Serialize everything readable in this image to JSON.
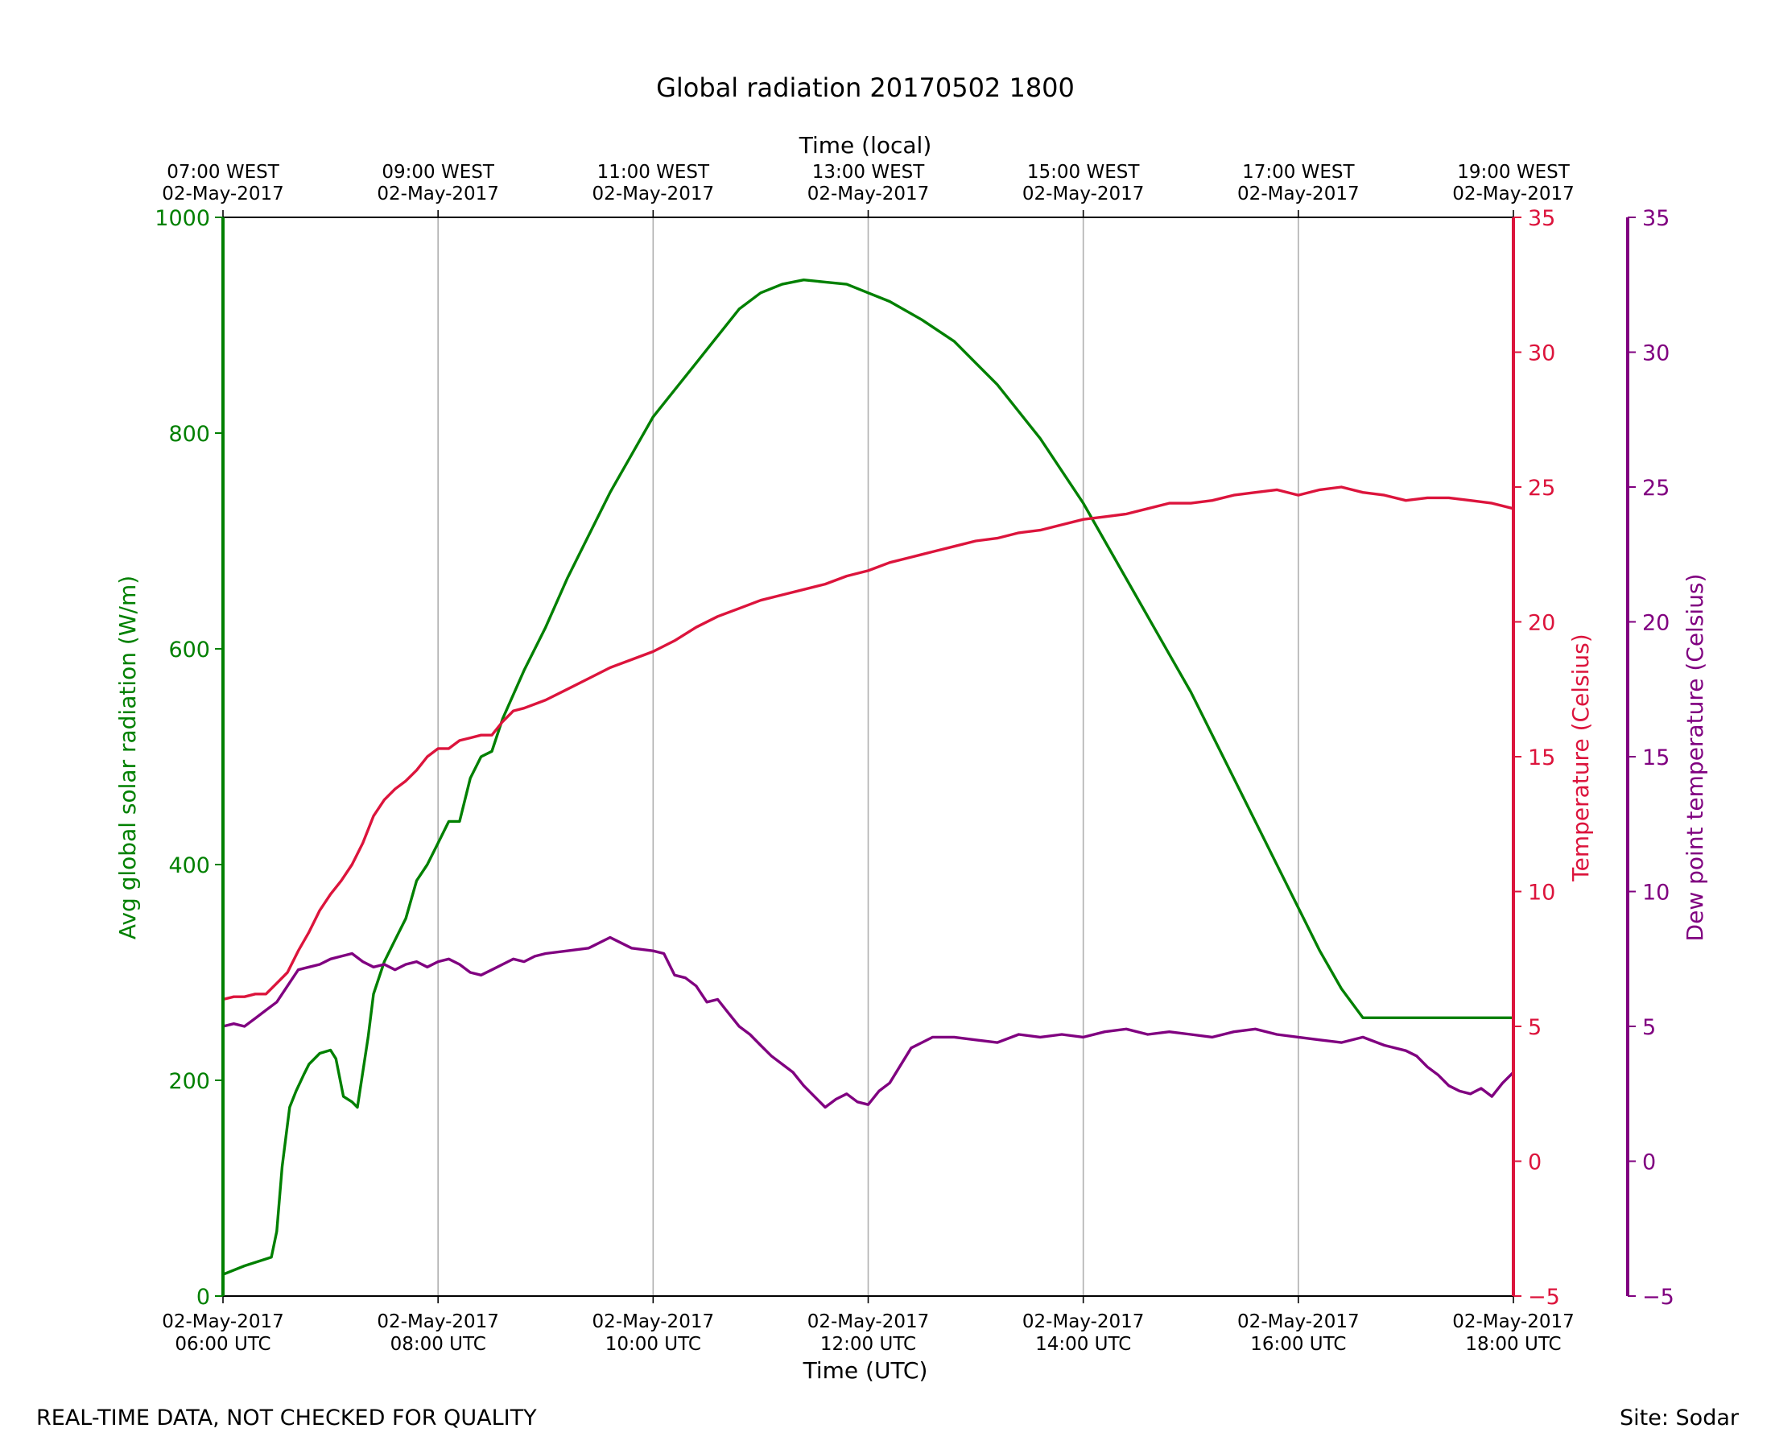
{
  "chart_data": {
    "type": "line",
    "title": "Global radiation 20170502 1800",
    "xlabel": "Time (UTC)",
    "x2label": "Time (local)",
    "x_ticks_utc": [
      {
        "date": "02-May-2017",
        "time": "06:00 UTC"
      },
      {
        "date": "02-May-2017",
        "time": "08:00 UTC"
      },
      {
        "date": "02-May-2017",
        "time": "10:00 UTC"
      },
      {
        "date": "02-May-2017",
        "time": "12:00 UTC"
      },
      {
        "date": "02-May-2017",
        "time": "14:00 UTC"
      },
      {
        "date": "02-May-2017",
        "time": "16:00 UTC"
      },
      {
        "date": "02-May-2017",
        "time": "18:00 UTC"
      }
    ],
    "x_ticks_local": [
      {
        "time": "07:00 WEST",
        "date": "02-May-2017"
      },
      {
        "time": "09:00 WEST",
        "date": "02-May-2017"
      },
      {
        "time": "11:00 WEST",
        "date": "02-May-2017"
      },
      {
        "time": "13:00 WEST",
        "date": "02-May-2017"
      },
      {
        "time": "15:00 WEST",
        "date": "02-May-2017"
      },
      {
        "time": "17:00 WEST",
        "date": "02-May-2017"
      },
      {
        "time": "19:00 WEST",
        "date": "02-May-2017"
      }
    ],
    "xlim_hours_utc": [
      6,
      18
    ],
    "grid": "vertical",
    "axes": {
      "radiation": {
        "label": "Avg global solar radiation (W/m)",
        "ylim": [
          0,
          1000
        ],
        "ticks": [
          "0",
          "200",
          "400",
          "600",
          "800",
          "1000"
        ],
        "color": "#008000"
      },
      "temperature": {
        "label": "Temperature (Celsius)",
        "ylim": [
          -5,
          35
        ],
        "ticks": [
          "−5",
          "0",
          "5",
          "10",
          "15",
          "20",
          "25",
          "30",
          "35"
        ],
        "color": "#dc143c"
      },
      "dewpoint": {
        "label": "Dew point temperature (Celsius)",
        "ylim": [
          -5,
          35
        ],
        "ticks": [
          "−5",
          "0",
          "5",
          "10",
          "15",
          "20",
          "25",
          "30",
          "35"
        ],
        "color": "#800080"
      }
    },
    "series": [
      {
        "name": "Avg global solar radiation",
        "axis": "radiation",
        "color": "#008000",
        "x": [
          6.0,
          6.2,
          6.45,
          6.5,
          6.55,
          6.62,
          6.68,
          6.75,
          6.8,
          6.9,
          7.0,
          7.05,
          7.12,
          7.2,
          7.25,
          7.35,
          7.4,
          7.5,
          7.6,
          7.7,
          7.8,
          7.9,
          8.0,
          8.1,
          8.2,
          8.3,
          8.4,
          8.5,
          8.6,
          8.8,
          9.0,
          9.2,
          9.4,
          9.6,
          9.8,
          10.0,
          10.2,
          10.4,
          10.6,
          10.8,
          11.0,
          11.2,
          11.4,
          11.6,
          11.8,
          12.0,
          12.2,
          12.5,
          12.8,
          13.0,
          13.2,
          13.4,
          13.6,
          13.8,
          14.0,
          14.2,
          14.4,
          14.6,
          14.8,
          15.0,
          15.2,
          15.4,
          15.6,
          15.8,
          16.0,
          16.2,
          16.4,
          16.6,
          16.8,
          17.0,
          17.2,
          17.4,
          17.6,
          17.8,
          18.0
        ],
        "values": [
          20,
          28,
          36,
          60,
          120,
          175,
          190,
          205,
          215,
          225,
          228,
          220,
          185,
          180,
          175,
          240,
          280,
          310,
          330,
          350,
          385,
          400,
          420,
          440,
          440,
          480,
          500,
          505,
          535,
          580,
          620,
          665,
          705,
          745,
          780,
          815,
          840,
          865,
          890,
          915,
          930,
          938,
          942,
          940,
          938,
          930,
          922,
          905,
          885,
          865,
          845,
          820,
          795,
          765,
          735,
          700,
          665,
          630,
          595,
          560,
          520,
          480,
          440,
          400,
          360,
          320,
          285,
          258,
          258,
          258,
          258,
          258,
          258,
          258,
          258
        ]
      },
      {
        "name": "Temperature",
        "axis": "temperature",
        "color": "#dc143c",
        "x": [
          6.0,
          6.1,
          6.2,
          6.3,
          6.4,
          6.5,
          6.6,
          6.7,
          6.8,
          6.9,
          7.0,
          7.1,
          7.2,
          7.3,
          7.4,
          7.5,
          7.6,
          7.7,
          7.8,
          7.9,
          8.0,
          8.1,
          8.2,
          8.3,
          8.4,
          8.5,
          8.6,
          8.7,
          8.8,
          9.0,
          9.2,
          9.4,
          9.6,
          9.8,
          10.0,
          10.2,
          10.4,
          10.6,
          10.8,
          11.0,
          11.2,
          11.4,
          11.6,
          11.8,
          12.0,
          12.2,
          12.4,
          12.6,
          12.8,
          13.0,
          13.2,
          13.4,
          13.6,
          13.8,
          14.0,
          14.2,
          14.4,
          14.6,
          14.8,
          15.0,
          15.2,
          15.4,
          15.6,
          15.8,
          16.0,
          16.2,
          16.4,
          16.6,
          16.8,
          17.0,
          17.2,
          17.4,
          17.6,
          17.8,
          18.0
        ],
        "values": [
          6.0,
          6.1,
          6.1,
          6.2,
          6.2,
          6.6,
          7.0,
          7.8,
          8.5,
          9.3,
          9.9,
          10.4,
          11.0,
          11.8,
          12.8,
          13.4,
          13.8,
          14.1,
          14.5,
          15.0,
          15.3,
          15.3,
          15.6,
          15.7,
          15.8,
          15.8,
          16.3,
          16.7,
          16.8,
          17.1,
          17.5,
          17.9,
          18.3,
          18.6,
          18.9,
          19.3,
          19.8,
          20.2,
          20.5,
          20.8,
          21.0,
          21.2,
          21.4,
          21.7,
          21.9,
          22.2,
          22.4,
          22.6,
          22.8,
          23.0,
          23.1,
          23.3,
          23.4,
          23.6,
          23.8,
          23.9,
          24.0,
          24.2,
          24.4,
          24.4,
          24.5,
          24.7,
          24.8,
          24.9,
          24.7,
          24.9,
          25.0,
          24.8,
          24.7,
          24.5,
          24.6,
          24.6,
          24.5,
          24.4,
          24.2
        ]
      },
      {
        "name": "Dew point temperature",
        "axis": "dewpoint",
        "color": "#800080",
        "x": [
          6.0,
          6.1,
          6.2,
          6.3,
          6.4,
          6.5,
          6.6,
          6.7,
          6.8,
          6.9,
          7.0,
          7.1,
          7.2,
          7.3,
          7.4,
          7.5,
          7.6,
          7.7,
          7.8,
          7.9,
          8.0,
          8.1,
          8.2,
          8.3,
          8.4,
          8.5,
          8.6,
          8.7,
          8.8,
          8.9,
          9.0,
          9.2,
          9.4,
          9.6,
          9.8,
          10.0,
          10.1,
          10.2,
          10.3,
          10.4,
          10.5,
          10.6,
          10.7,
          10.8,
          10.9,
          11.0,
          11.1,
          11.2,
          11.3,
          11.4,
          11.5,
          11.6,
          11.7,
          11.8,
          11.9,
          12.0,
          12.1,
          12.2,
          12.4,
          12.6,
          12.8,
          13.0,
          13.2,
          13.4,
          13.6,
          13.8,
          14.0,
          14.2,
          14.4,
          14.6,
          14.8,
          15.0,
          15.2,
          15.4,
          15.6,
          15.8,
          16.0,
          16.2,
          16.4,
          16.6,
          16.8,
          17.0,
          17.1,
          17.2,
          17.3,
          17.4,
          17.5,
          17.6,
          17.7,
          17.8,
          17.9,
          18.0
        ],
        "values": [
          5.0,
          5.1,
          5.0,
          5.3,
          5.6,
          5.9,
          6.5,
          7.1,
          7.2,
          7.3,
          7.5,
          7.6,
          7.7,
          7.4,
          7.2,
          7.3,
          7.1,
          7.3,
          7.4,
          7.2,
          7.4,
          7.5,
          7.3,
          7.0,
          6.9,
          7.1,
          7.3,
          7.5,
          7.4,
          7.6,
          7.7,
          7.8,
          7.9,
          8.3,
          7.9,
          7.8,
          7.7,
          6.9,
          6.8,
          6.5,
          5.9,
          6.0,
          5.5,
          5.0,
          4.7,
          4.3,
          3.9,
          3.6,
          3.3,
          2.8,
          2.4,
          2.0,
          2.3,
          2.5,
          2.2,
          2.1,
          2.6,
          2.9,
          4.2,
          4.6,
          4.6,
          4.5,
          4.4,
          4.7,
          4.6,
          4.7,
          4.6,
          4.8,
          4.9,
          4.7,
          4.8,
          4.7,
          4.6,
          4.8,
          4.9,
          4.7,
          4.6,
          4.5,
          4.4,
          4.6,
          4.3,
          4.1,
          3.9,
          3.5,
          3.2,
          2.8,
          2.6,
          2.5,
          2.7,
          2.4,
          2.9,
          3.3
        ]
      }
    ]
  },
  "footer": {
    "left_note": "REAL-TIME DATA, NOT CHECKED FOR QUALITY",
    "right_note": "Site: Sodar"
  }
}
